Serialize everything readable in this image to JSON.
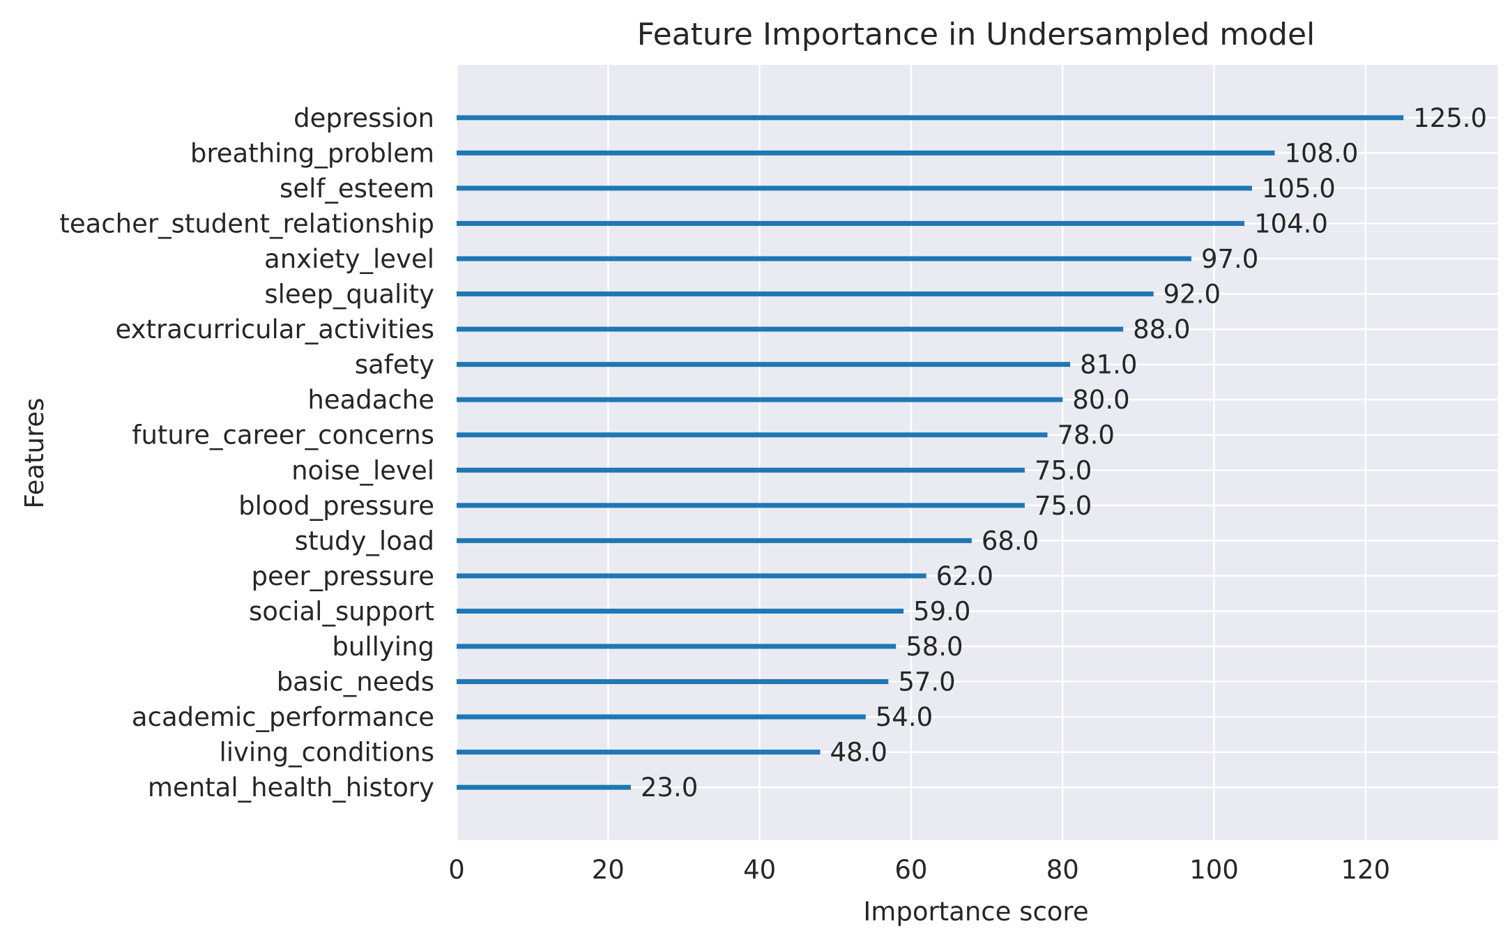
{
  "chart_data": {
    "type": "bar",
    "orientation": "horizontal",
    "title": "Feature Importance in Undersampled model",
    "xlabel": "Importance score",
    "ylabel": "Features",
    "xlim": [
      0,
      137.5
    ],
    "xticks": [
      0,
      20,
      40,
      60,
      80,
      100,
      120
    ],
    "xtick_labels": [
      "0",
      "20",
      "40",
      "60",
      "80",
      "100",
      "120"
    ],
    "grid": true,
    "categories": [
      "depression",
      "breathing_problem",
      "self_esteem",
      "teacher_student_relationship",
      "anxiety_level",
      "sleep_quality",
      "extracurricular_activities",
      "safety",
      "headache",
      "future_career_concerns",
      "noise_level",
      "blood_pressure",
      "study_load",
      "peer_pressure",
      "social_support",
      "bullying",
      "basic_needs",
      "academic_performance",
      "living_conditions",
      "mental_health_history"
    ],
    "values": [
      125,
      108,
      105,
      104,
      97,
      92,
      88,
      81,
      80,
      78,
      75,
      75,
      68,
      62,
      59,
      58,
      57,
      54,
      48,
      23
    ],
    "value_labels": [
      "125.0",
      "108.0",
      "105.0",
      "104.0",
      "97.0",
      "92.0",
      "88.0",
      "81.0",
      "80.0",
      "78.0",
      "75.0",
      "75.0",
      "68.0",
      "62.0",
      "59.0",
      "58.0",
      "57.0",
      "54.0",
      "48.0",
      "23.0"
    ],
    "colors": {
      "bar": "#1f77b4",
      "plot_background": "#eaeaf2",
      "grid": "#ffffff",
      "text": "#262626"
    }
  }
}
